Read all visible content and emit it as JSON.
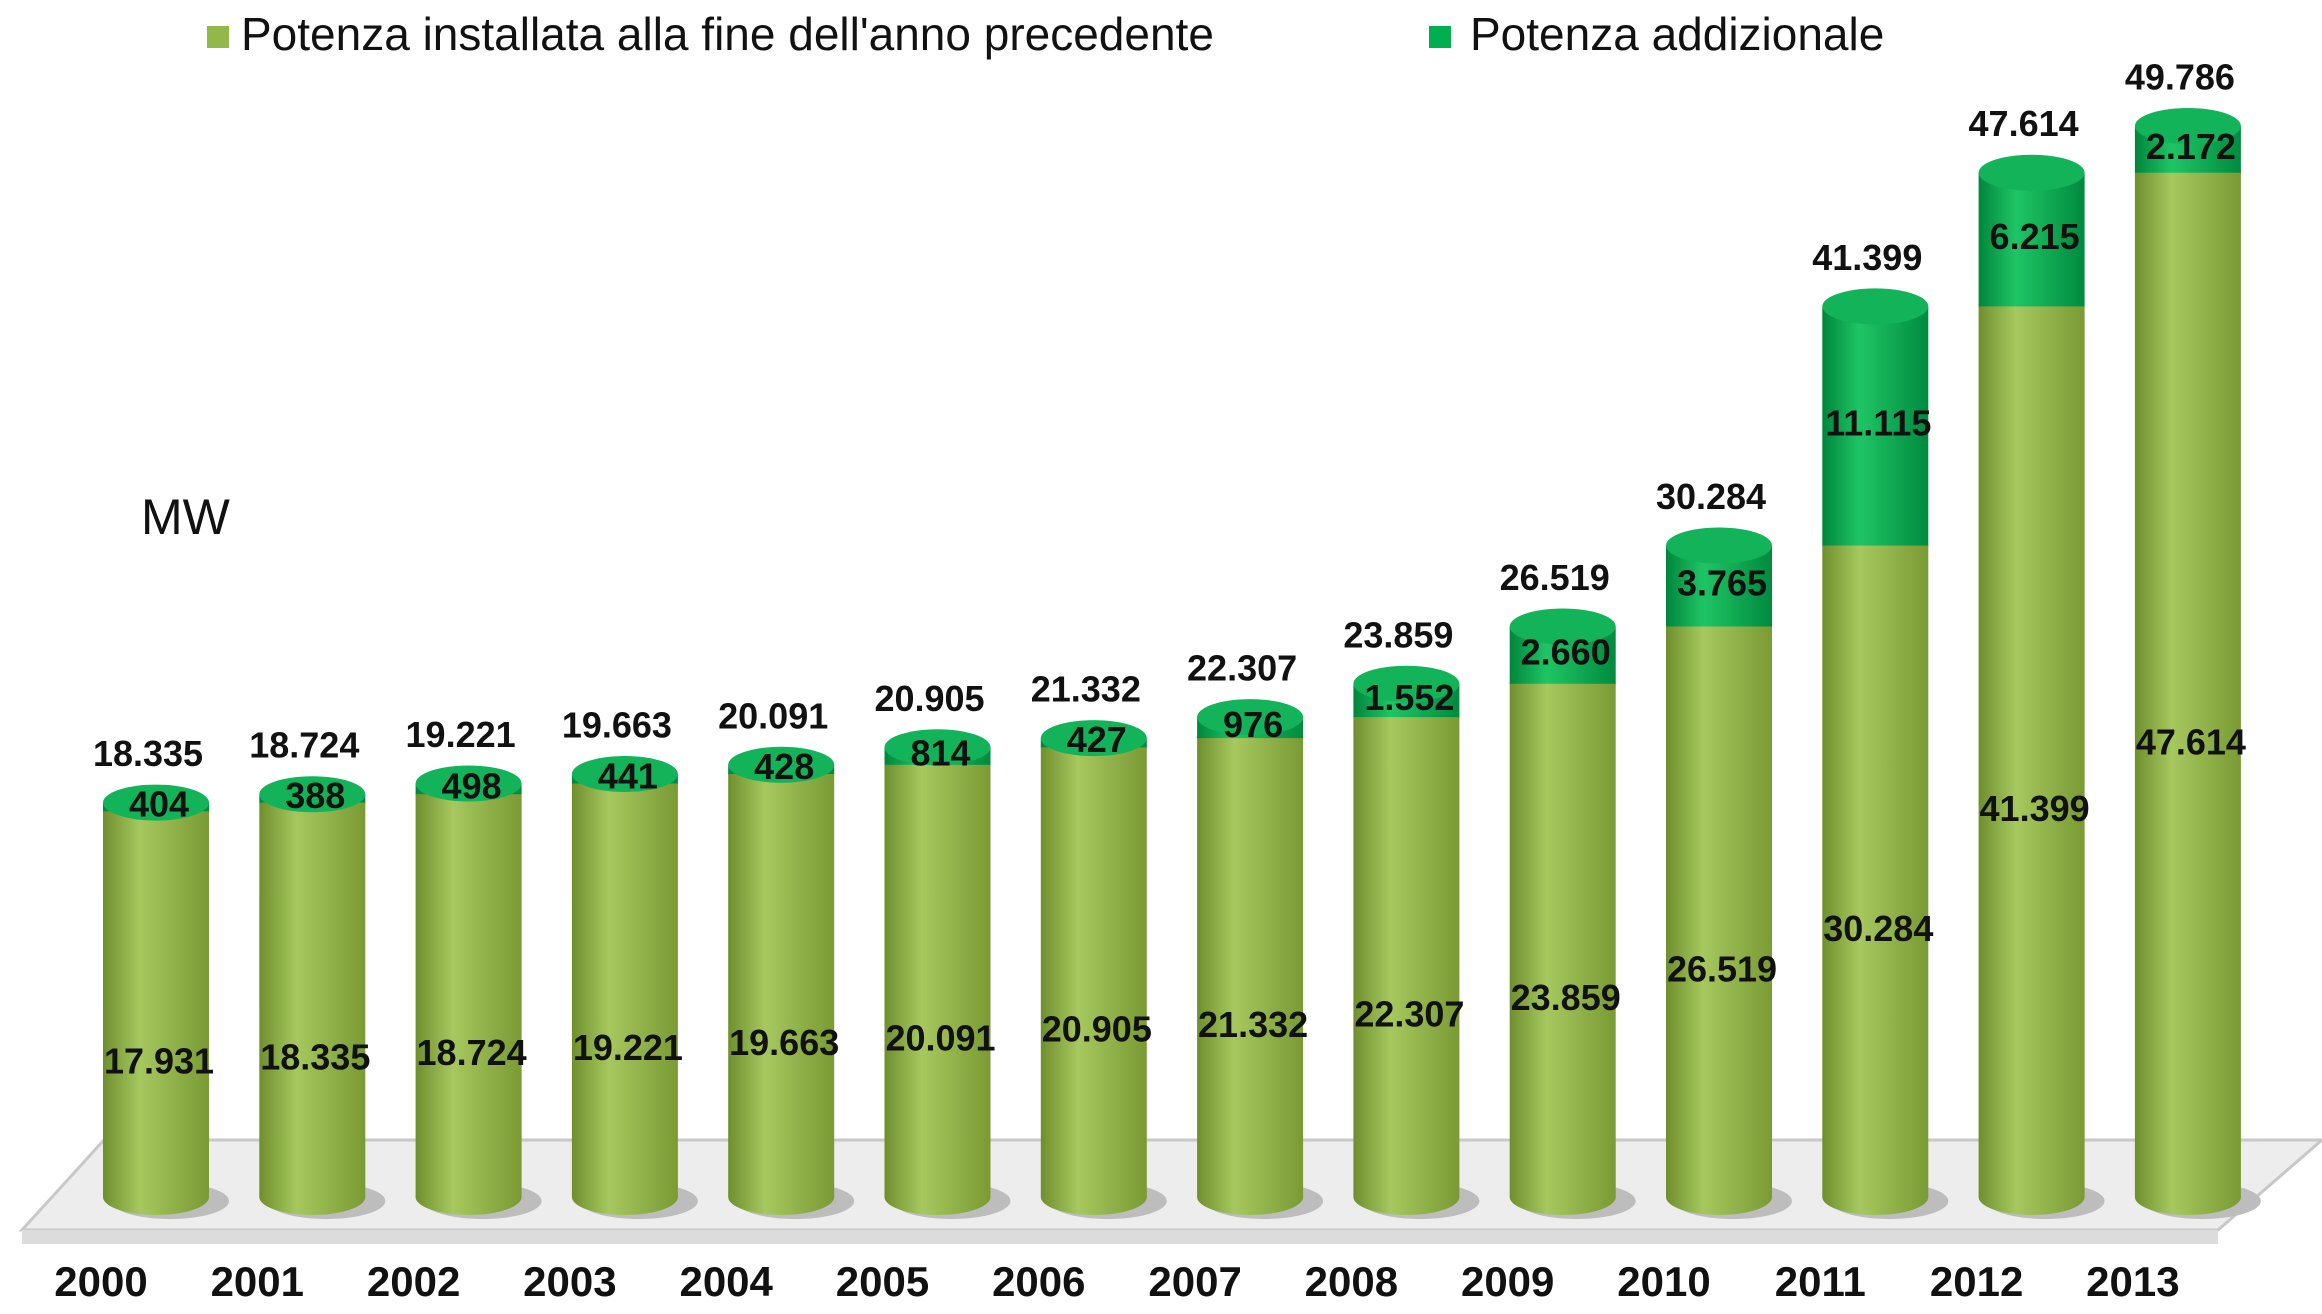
{
  "chart_data": {
    "type": "bar",
    "stacked": true,
    "unit_label": "MW",
    "categories": [
      "2000",
      "2001",
      "2002",
      "2003",
      "2004",
      "2005",
      "2006",
      "2007",
      "2008",
      "2009",
      "2010",
      "2011",
      "2012",
      "2013"
    ],
    "series": [
      {
        "name": "Potenza installata alla fine dell'anno precedente",
        "color": "#93b84a",
        "values": [
          17931,
          18335,
          18724,
          19221,
          19663,
          20091,
          20905,
          21332,
          22307,
          23859,
          26519,
          30284,
          41399,
          47614
        ],
        "value_labels": [
          "17.931",
          "18.335",
          "18.724",
          "19.221",
          "19.663",
          "20.091",
          "20.905",
          "21.332",
          "22.307",
          "23.859",
          "26.519",
          "30.284",
          "41.399",
          "47.614"
        ]
      },
      {
        "name": "Potenza addizionale",
        "color": "#00b050",
        "values": [
          404,
          388,
          498,
          441,
          428,
          814,
          427,
          976,
          1552,
          2660,
          3765,
          11115,
          6215,
          2172
        ],
        "value_labels": [
          "404",
          "388",
          "498",
          "441",
          "428",
          "814",
          "427",
          "976",
          "1.552",
          "2.660",
          "3.765",
          "11.115",
          "6.215",
          "2.172"
        ]
      }
    ],
    "totals": {
      "values": [
        18335,
        18724,
        19221,
        19663,
        20091,
        20905,
        21332,
        22307,
        23859,
        26519,
        30284,
        41399,
        47614,
        49786
      ],
      "value_labels": [
        "18.335",
        "18.724",
        "19.221",
        "19.663",
        "20.091",
        "20.905",
        "21.332",
        "22.307",
        "23.859",
        "26.519",
        "30.284",
        "41.399",
        "47.614",
        "49.786"
      ]
    },
    "legend": "top"
  }
}
